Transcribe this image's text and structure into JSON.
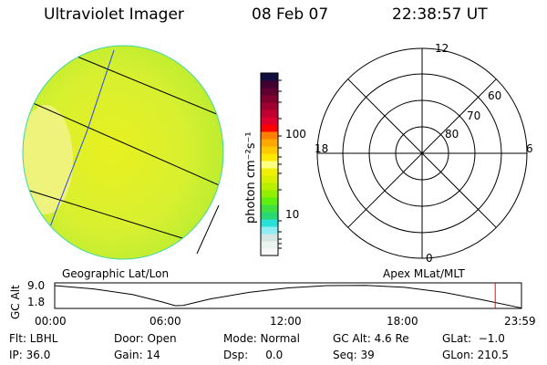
{
  "header": {
    "instrument": "Ultraviolet Imager",
    "date": "08 Feb 07",
    "time": "22:38:57 UT"
  },
  "colorbar": {
    "label": "photon cm⁻²s⁻¹",
    "ticks": [
      "100",
      "10"
    ],
    "colors": [
      "#f8f8f8",
      "#eaf4ee",
      "#d4e6e4",
      "#90ecf4",
      "#28e0d8",
      "#28d870",
      "#40e040",
      "#60f010",
      "#90f000",
      "#b8f000",
      "#d8f000",
      "#f0f000",
      "#ffff80",
      "#ffe800",
      "#ffc800",
      "#ffa800",
      "#ff8000",
      "#ff0000",
      "#e00030",
      "#c00030",
      "#a00030",
      "#800030",
      "#600030",
      "#400030",
      "#101040"
    ]
  },
  "polar": {
    "labels": {
      "top": "12",
      "bottom": "0",
      "left": "18",
      "right": "6"
    },
    "rings": [
      "80",
      "70",
      "60"
    ]
  },
  "altitude_plot": {
    "ylabel": "GC Alt",
    "yticks": [
      "9.0",
      "1.8"
    ],
    "xticks": [
      "00:00",
      "06:00",
      "12:00",
      "18:00",
      "23:59"
    ],
    "left_title": "Geographic Lat/Lon",
    "right_title": "Apex MLat/MLT",
    "current_hour": 22.65,
    "curve": [
      [
        0,
        9.0
      ],
      [
        2,
        7.8
      ],
      [
        4,
        5.8
      ],
      [
        5.5,
        3.2
      ],
      [
        6.2,
        1.8
      ],
      [
        6.6,
        1.9
      ],
      [
        8,
        4.2
      ],
      [
        10,
        6.6
      ],
      [
        12,
        8.2
      ],
      [
        14,
        9.0
      ],
      [
        16,
        9.1
      ],
      [
        18,
        8.4
      ],
      [
        20,
        6.6
      ],
      [
        22,
        3.9
      ],
      [
        23.98,
        1.0
      ]
    ]
  },
  "status": {
    "row1": [
      "Flt: LBHL",
      "Door: Open",
      "Mode: Normal",
      "GC Alt: 4.6 Re",
      "GLat:  −1.0"
    ],
    "row2": [
      "IP: 36.0",
      "Gain: 14",
      "Dsp:     0.0",
      "Seq: 39",
      "GLon: 210.5"
    ]
  }
}
